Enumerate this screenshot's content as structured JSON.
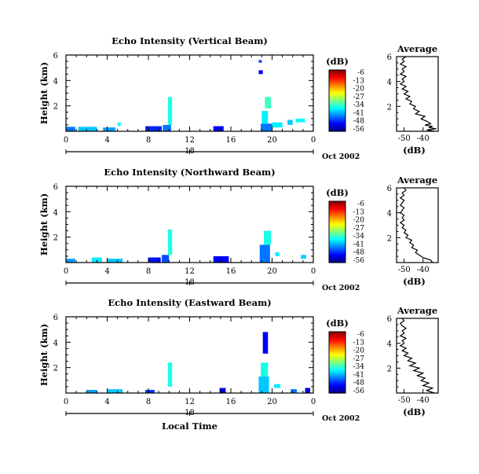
{
  "chart_data": [
    {
      "type": "heatmap",
      "title": "Echo Intensity (Vertical Beam)",
      "ylabel": "Height (km)",
      "ylim": [
        0,
        6
      ],
      "yticks": [
        "2",
        "4",
        "6"
      ],
      "xticks": [
        "0",
        "4",
        "8",
        "12",
        "16",
        "20",
        "0"
      ],
      "xlim": [
        0,
        24
      ],
      "date_tick": "18",
      "date_label": "Oct 2002",
      "colorbar": {
        "label": "(dB)",
        "ticks": [
          "-6",
          "-13",
          "-20",
          "-27",
          "-34",
          "-41",
          "-48",
          "-56"
        ]
      },
      "echoes": [
        {
          "t0": 0.0,
          "t1": 0.9,
          "h0": 0.0,
          "h1": 0.35,
          "dbz": -44
        },
        {
          "t0": 1.2,
          "t1": 3.0,
          "h0": 0.0,
          "h1": 0.35,
          "dbz": -40
        },
        {
          "t0": 3.6,
          "t1": 4.8,
          "h0": 0.0,
          "h1": 0.3,
          "dbz": -42
        },
        {
          "t0": 5.0,
          "t1": 5.3,
          "h0": 0.4,
          "h1": 0.7,
          "dbz": -36
        },
        {
          "t0": 7.7,
          "t1": 9.3,
          "h0": 0.0,
          "h1": 0.4,
          "dbz": -48
        },
        {
          "t0": 9.4,
          "t1": 10.2,
          "h0": 0.0,
          "h1": 0.5,
          "dbz": -44
        },
        {
          "t0": 9.9,
          "t1": 10.3,
          "h0": 0.5,
          "h1": 2.7,
          "dbz": -36
        },
        {
          "t0": 14.3,
          "t1": 15.3,
          "h0": 0.0,
          "h1": 0.4,
          "dbz": -50
        },
        {
          "t0": 18.7,
          "t1": 19.1,
          "h0": 4.5,
          "h1": 4.8,
          "dbz": -50
        },
        {
          "t0": 18.7,
          "t1": 19.0,
          "h0": 5.4,
          "h1": 5.6,
          "dbz": -47
        },
        {
          "t0": 18.9,
          "t1": 20.0,
          "h0": 0.0,
          "h1": 0.6,
          "dbz": -44
        },
        {
          "t0": 19.0,
          "t1": 19.6,
          "h0": 0.6,
          "h1": 1.6,
          "dbz": -38
        },
        {
          "t0": 19.3,
          "t1": 19.9,
          "h0": 1.8,
          "h1": 2.7,
          "dbz": -34
        },
        {
          "t0": 20.0,
          "t1": 21.0,
          "h0": 0.3,
          "h1": 0.7,
          "dbz": -38
        },
        {
          "t0": 21.5,
          "t1": 22.0,
          "h0": 0.5,
          "h1": 0.9,
          "dbz": -40
        },
        {
          "t0": 22.3,
          "t1": 23.2,
          "h0": 0.7,
          "h1": 1.0,
          "dbz": -37
        }
      ],
      "average_profile": {
        "title": "Average",
        "xlabel": "(dB)",
        "xticks": [
          "-50",
          "-40"
        ],
        "xlim": [
          -54,
          -32
        ],
        "ylim": [
          0,
          6
        ],
        "yticks": [
          "2",
          "4",
          "6"
        ],
        "height": [
          0.0,
          0.1,
          0.2,
          0.3,
          0.4,
          0.5,
          0.6,
          0.8,
          1.0,
          1.2,
          1.4,
          1.6,
          1.8,
          2.0,
          2.2,
          2.4,
          2.6,
          2.8,
          3.0,
          3.2,
          3.4,
          3.6,
          3.8,
          4.0,
          4.2,
          4.4,
          4.6,
          4.8,
          5.0,
          5.2,
          5.4,
          5.6,
          5.8,
          6.0
        ],
        "value_db": [
          -34,
          -38,
          -33,
          -37,
          -35,
          -39,
          -36,
          -38,
          -41,
          -39,
          -44,
          -42,
          -45,
          -44,
          -47,
          -46,
          -49,
          -47,
          -50,
          -48,
          -51,
          -49,
          -52,
          -50,
          -51,
          -49,
          -52,
          -50,
          -51,
          -49,
          -52,
          -50,
          -51,
          -49
        ]
      }
    },
    {
      "type": "heatmap",
      "title": "Echo Intensity (Northward Beam)",
      "ylabel": "Height (km)",
      "ylim": [
        0,
        6
      ],
      "yticks": [
        "2",
        "4",
        "6"
      ],
      "xticks": [
        "0",
        "4",
        "8",
        "12",
        "16",
        "20",
        "0"
      ],
      "xlim": [
        0,
        24
      ],
      "date_tick": "18",
      "date_label": "Oct 2002",
      "colorbar": {
        "label": "(dB)",
        "ticks": [
          "-6",
          "-13",
          "-20",
          "-27",
          "-34",
          "-41",
          "-48",
          "-56"
        ]
      },
      "echoes": [
        {
          "t0": 0.0,
          "t1": 0.9,
          "h0": 0.0,
          "h1": 0.3,
          "dbz": -42
        },
        {
          "t0": 2.5,
          "t1": 3.5,
          "h0": 0.0,
          "h1": 0.4,
          "dbz": -38
        },
        {
          "t0": 4.0,
          "t1": 5.5,
          "h0": 0.0,
          "h1": 0.3,
          "dbz": -40
        },
        {
          "t0": 8.0,
          "t1": 9.2,
          "h0": 0.0,
          "h1": 0.4,
          "dbz": -49
        },
        {
          "t0": 9.3,
          "t1": 10.0,
          "h0": 0.0,
          "h1": 0.6,
          "dbz": -46
        },
        {
          "t0": 9.9,
          "t1": 10.3,
          "h0": 0.6,
          "h1": 2.6,
          "dbz": -36
        },
        {
          "t0": 14.3,
          "t1": 15.8,
          "h0": 0.0,
          "h1": 0.5,
          "dbz": -50
        },
        {
          "t0": 18.8,
          "t1": 19.8,
          "h0": 0.0,
          "h1": 1.4,
          "dbz": -44
        },
        {
          "t0": 19.2,
          "t1": 19.9,
          "h0": 1.4,
          "h1": 2.5,
          "dbz": -36
        },
        {
          "t0": 20.3,
          "t1": 20.7,
          "h0": 0.5,
          "h1": 0.8,
          "dbz": -38
        },
        {
          "t0": 22.8,
          "t1": 23.3,
          "h0": 0.3,
          "h1": 0.6,
          "dbz": -40
        }
      ],
      "average_profile": {
        "title": "Average",
        "xlabel": "(dB)",
        "xticks": [
          "-50",
          "-40"
        ],
        "xlim": [
          -54,
          -32
        ],
        "ylim": [
          0,
          6
        ],
        "yticks": [
          "2",
          "4",
          "6"
        ],
        "height": [
          0.0,
          0.2,
          0.4,
          0.6,
          0.8,
          1.0,
          1.2,
          1.4,
          1.6,
          1.8,
          2.0,
          2.2,
          2.4,
          2.6,
          2.8,
          3.0,
          3.2,
          3.4,
          3.6,
          3.8,
          4.0,
          4.2,
          4.4,
          4.6,
          4.8,
          5.0,
          5.2,
          5.4,
          5.6,
          5.8,
          6.0
        ],
        "value_db": [
          -35,
          -36,
          -40,
          -42,
          -44,
          -43,
          -46,
          -45,
          -47,
          -46,
          -49,
          -48,
          -50,
          -49,
          -51,
          -50,
          -52,
          -50,
          -51,
          -50,
          -52,
          -51,
          -50,
          -52,
          -51,
          -50,
          -52,
          -50,
          -51,
          -49,
          -50
        ]
      }
    },
    {
      "type": "heatmap",
      "title": "Echo Intensity (Eastward Beam)",
      "ylabel": "Height (km)",
      "ylim": [
        0,
        6
      ],
      "yticks": [
        "2",
        "4",
        "6"
      ],
      "xticks": [
        "0",
        "4",
        "8",
        "12",
        "16",
        "20",
        "0"
      ],
      "xlim": [
        0,
        24
      ],
      "date_tick": "18",
      "date_label": "Oct 2002",
      "xlabel": "Local Time",
      "colorbar": {
        "label": "(dB)",
        "ticks": [
          "-6",
          "-13",
          "-20",
          "-27",
          "-34",
          "-41",
          "-48",
          "-56"
        ]
      },
      "echoes": [
        {
          "t0": 2.0,
          "t1": 3.0,
          "h0": 0.0,
          "h1": 0.25,
          "dbz": -42
        },
        {
          "t0": 4.0,
          "t1": 5.5,
          "h0": 0.0,
          "h1": 0.3,
          "dbz": -40
        },
        {
          "t0": 7.7,
          "t1": 8.6,
          "h0": 0.0,
          "h1": 0.25,
          "dbz": -47
        },
        {
          "t0": 9.9,
          "t1": 10.3,
          "h0": 0.5,
          "h1": 2.4,
          "dbz": -36
        },
        {
          "t0": 14.9,
          "t1": 15.5,
          "h0": 0.0,
          "h1": 0.4,
          "dbz": -52
        },
        {
          "t0": 18.7,
          "t1": 19.7,
          "h0": 0.0,
          "h1": 1.3,
          "dbz": -40
        },
        {
          "t0": 18.9,
          "t1": 19.6,
          "h0": 1.3,
          "h1": 2.4,
          "dbz": -36
        },
        {
          "t0": 19.1,
          "t1": 19.6,
          "h0": 3.1,
          "h1": 4.8,
          "dbz": -50
        },
        {
          "t0": 20.2,
          "t1": 20.8,
          "h0": 0.4,
          "h1": 0.7,
          "dbz": -38
        },
        {
          "t0": 21.8,
          "t1": 22.4,
          "h0": 0.0,
          "h1": 0.3,
          "dbz": -44
        },
        {
          "t0": 23.2,
          "t1": 23.7,
          "h0": 0.0,
          "h1": 0.4,
          "dbz": -52
        }
      ],
      "average_profile": {
        "title": "Average",
        "xlabel": "(dB)",
        "xticks": [
          "-50",
          "-40"
        ],
        "xlim": [
          -54,
          -32
        ],
        "ylim": [
          0,
          6
        ],
        "yticks": [
          "2",
          "4",
          "6"
        ],
        "height": [
          0.0,
          0.2,
          0.4,
          0.6,
          0.8,
          1.0,
          1.2,
          1.4,
          1.6,
          1.8,
          2.0,
          2.2,
          2.4,
          2.6,
          2.8,
          3.0,
          3.2,
          3.4,
          3.6,
          3.8,
          4.0,
          4.2,
          4.4,
          4.6,
          4.8,
          5.0,
          5.2,
          5.4,
          5.6,
          5.8,
          6.0
        ],
        "value_db": [
          -34,
          -38,
          -35,
          -40,
          -37,
          -41,
          -39,
          -43,
          -40,
          -45,
          -42,
          -47,
          -44,
          -48,
          -46,
          -50,
          -48,
          -51,
          -49,
          -52,
          -50,
          -51,
          -49,
          -52,
          -50,
          -51,
          -49,
          -51,
          -52,
          -50,
          -51
        ]
      }
    }
  ]
}
